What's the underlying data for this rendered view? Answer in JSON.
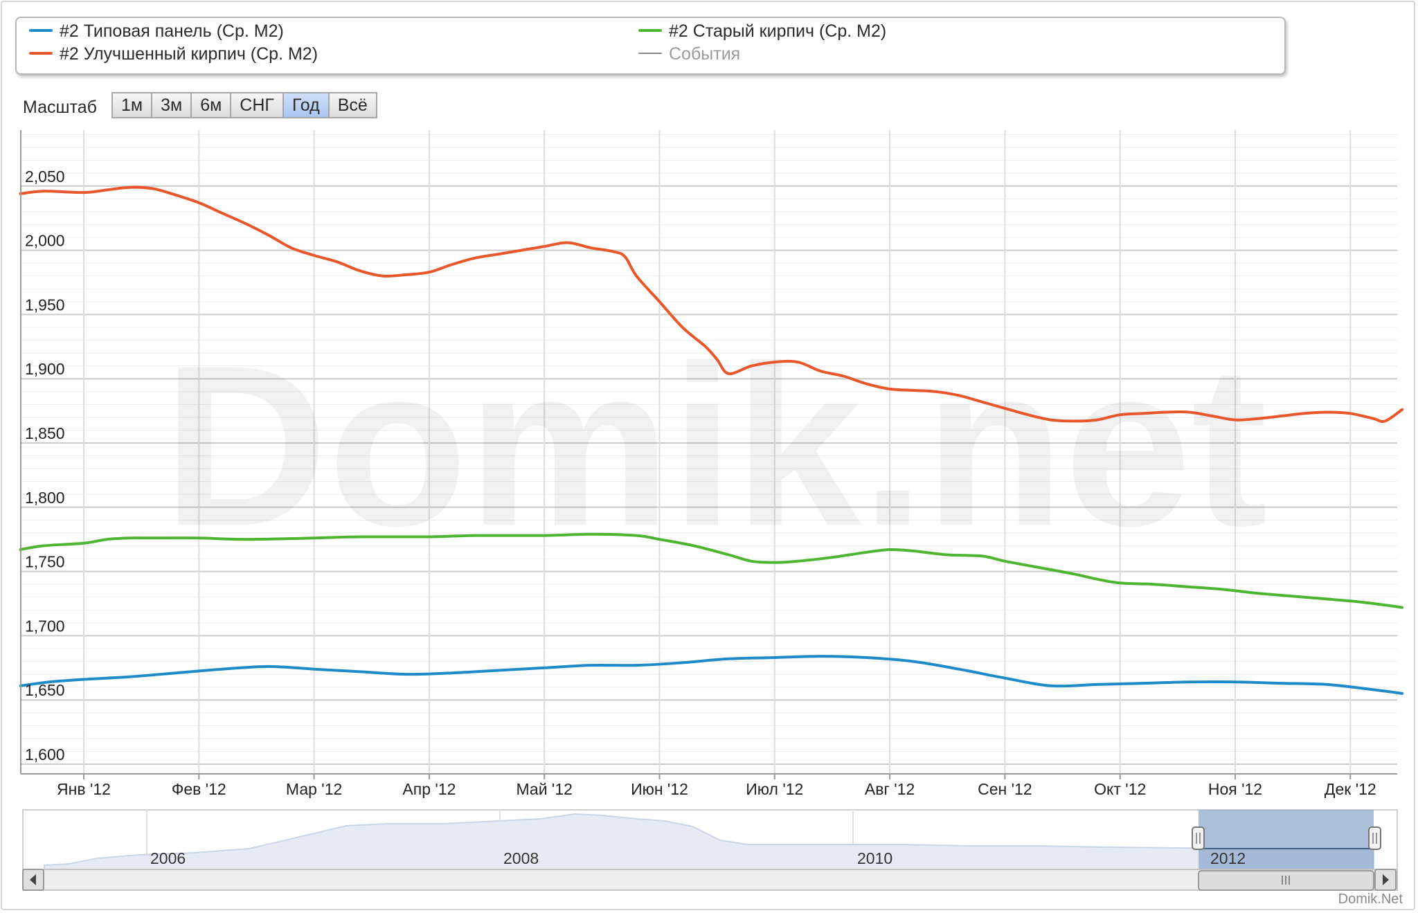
{
  "legend": {
    "items": [
      {
        "label": "#2 Типовая панель (Ср. М2)",
        "color": "#1f8ac9"
      },
      {
        "label": "#2 Старый кирпич (Ср. М2)",
        "color": "#4db52f"
      },
      {
        "label": "#2 Улучшенный кирпич (Ср. М2)",
        "color": "#e8562a"
      },
      {
        "label": "События",
        "color": "#888888"
      }
    ]
  },
  "range_selector": {
    "label": "Масштаб",
    "buttons": [
      "1м",
      "3м",
      "6м",
      "СНГ",
      "Год",
      "Всё"
    ],
    "active": "Год"
  },
  "watermark": "Domik.net",
  "credit": "Domik.Net",
  "chart_data": {
    "type": "line",
    "x_ticks": [
      "Янв '12",
      "Фев '12",
      "Мар '12",
      "Апр '12",
      "Май '12",
      "Июн '12",
      "Июл '12",
      "Авг '12",
      "Сен '12",
      "Окт '12",
      "Ноя '12",
      "Дек '12"
    ],
    "y_ticks": [
      "1,600",
      "1,650",
      "1,700",
      "1,750",
      "1,800",
      "1,850",
      "1,900",
      "1,950",
      "2,000",
      "2,050"
    ],
    "ylim": [
      1590,
      2100
    ],
    "xlim": [
      -0.55,
      11.45
    ],
    "grid": true,
    "series": [
      {
        "name": "#2 Улучшенный кирпич (Ср. М2)",
        "color": "#e8562a",
        "points": [
          [
            -0.55,
            2044
          ],
          [
            -0.35,
            2046
          ],
          [
            0.0,
            2045
          ],
          [
            0.2,
            2047
          ],
          [
            0.4,
            2049
          ],
          [
            0.6,
            2048
          ],
          [
            0.8,
            2043
          ],
          [
            1.0,
            2037
          ],
          [
            1.2,
            2029
          ],
          [
            1.4,
            2021
          ],
          [
            1.6,
            2012
          ],
          [
            1.8,
            2002
          ],
          [
            2.0,
            1996
          ],
          [
            2.2,
            1991
          ],
          [
            2.4,
            1984
          ],
          [
            2.6,
            1980
          ],
          [
            2.8,
            1981
          ],
          [
            3.0,
            1983
          ],
          [
            3.2,
            1989
          ],
          [
            3.4,
            1994
          ],
          [
            3.6,
            1997
          ],
          [
            3.8,
            2000
          ],
          [
            4.0,
            2003
          ],
          [
            4.2,
            2006
          ],
          [
            4.4,
            2002
          ],
          [
            4.6,
            1999
          ],
          [
            4.7,
            1995
          ],
          [
            4.8,
            1980
          ],
          [
            5.0,
            1960
          ],
          [
            5.2,
            1940
          ],
          [
            5.4,
            1925
          ],
          [
            5.5,
            1915
          ],
          [
            5.6,
            1904
          ],
          [
            5.8,
            1910
          ],
          [
            6.0,
            1913
          ],
          [
            6.2,
            1913
          ],
          [
            6.4,
            1906
          ],
          [
            6.6,
            1902
          ],
          [
            6.8,
            1896
          ],
          [
            7.0,
            1892
          ],
          [
            7.2,
            1891
          ],
          [
            7.4,
            1890
          ],
          [
            7.6,
            1887
          ],
          [
            7.8,
            1882
          ],
          [
            8.0,
            1877
          ],
          [
            8.2,
            1872
          ],
          [
            8.4,
            1868
          ],
          [
            8.6,
            1867
          ],
          [
            8.8,
            1868
          ],
          [
            9.0,
            1872
          ],
          [
            9.2,
            1873
          ],
          [
            9.4,
            1874
          ],
          [
            9.6,
            1874
          ],
          [
            9.8,
            1871
          ],
          [
            10.0,
            1868
          ],
          [
            10.2,
            1869
          ],
          [
            10.4,
            1871
          ],
          [
            10.6,
            1873
          ],
          [
            10.8,
            1874
          ],
          [
            11.0,
            1873
          ],
          [
            11.2,
            1869
          ],
          [
            11.3,
            1867
          ],
          [
            11.45,
            1876
          ]
        ]
      },
      {
        "name": "#2 Старый кирпич (Ср. М2)",
        "color": "#4db52f",
        "points": [
          [
            -0.55,
            1767
          ],
          [
            -0.35,
            1770
          ],
          [
            0.0,
            1772
          ],
          [
            0.2,
            1775
          ],
          [
            0.4,
            1776
          ],
          [
            0.6,
            1776
          ],
          [
            1.0,
            1776
          ],
          [
            1.4,
            1775
          ],
          [
            2.0,
            1776
          ],
          [
            2.4,
            1777
          ],
          [
            3.0,
            1777
          ],
          [
            3.4,
            1778
          ],
          [
            4.0,
            1778
          ],
          [
            4.4,
            1779
          ],
          [
            4.8,
            1778
          ],
          [
            5.0,
            1775
          ],
          [
            5.3,
            1770
          ],
          [
            5.6,
            1763
          ],
          [
            5.8,
            1758
          ],
          [
            6.0,
            1757
          ],
          [
            6.2,
            1758
          ],
          [
            6.5,
            1761
          ],
          [
            6.8,
            1765
          ],
          [
            7.0,
            1767
          ],
          [
            7.2,
            1766
          ],
          [
            7.5,
            1763
          ],
          [
            7.8,
            1762
          ],
          [
            8.0,
            1758
          ],
          [
            8.3,
            1753
          ],
          [
            8.6,
            1748
          ],
          [
            8.8,
            1744
          ],
          [
            9.0,
            1741
          ],
          [
            9.3,
            1740
          ],
          [
            9.6,
            1738
          ],
          [
            9.9,
            1736
          ],
          [
            10.2,
            1733
          ],
          [
            10.6,
            1730
          ],
          [
            11.0,
            1727
          ],
          [
            11.2,
            1725
          ],
          [
            11.45,
            1722
          ]
        ]
      },
      {
        "name": "#2 Типовая панель (Ср. М2)",
        "color": "#1f8ac9",
        "points": [
          [
            -0.55,
            1661
          ],
          [
            -0.3,
            1664
          ],
          [
            0.0,
            1666
          ],
          [
            0.4,
            1668
          ],
          [
            0.8,
            1671
          ],
          [
            1.2,
            1674
          ],
          [
            1.6,
            1676
          ],
          [
            2.0,
            1674
          ],
          [
            2.4,
            1672
          ],
          [
            2.8,
            1670
          ],
          [
            3.2,
            1671
          ],
          [
            3.6,
            1673
          ],
          [
            4.0,
            1675
          ],
          [
            4.4,
            1677
          ],
          [
            4.8,
            1677
          ],
          [
            5.2,
            1679
          ],
          [
            5.6,
            1682
          ],
          [
            6.0,
            1683
          ],
          [
            6.4,
            1684
          ],
          [
            6.8,
            1683
          ],
          [
            7.2,
            1680
          ],
          [
            7.6,
            1674
          ],
          [
            8.0,
            1667
          ],
          [
            8.4,
            1661
          ],
          [
            8.8,
            1662
          ],
          [
            9.2,
            1663
          ],
          [
            9.6,
            1664
          ],
          [
            10.0,
            1664
          ],
          [
            10.4,
            1663
          ],
          [
            10.8,
            1662
          ],
          [
            11.2,
            1658
          ],
          [
            11.45,
            1655
          ]
        ]
      }
    ]
  },
  "navigator": {
    "year_labels": [
      "2006",
      "2008",
      "2010",
      "2012"
    ],
    "selected_label": "2012"
  }
}
